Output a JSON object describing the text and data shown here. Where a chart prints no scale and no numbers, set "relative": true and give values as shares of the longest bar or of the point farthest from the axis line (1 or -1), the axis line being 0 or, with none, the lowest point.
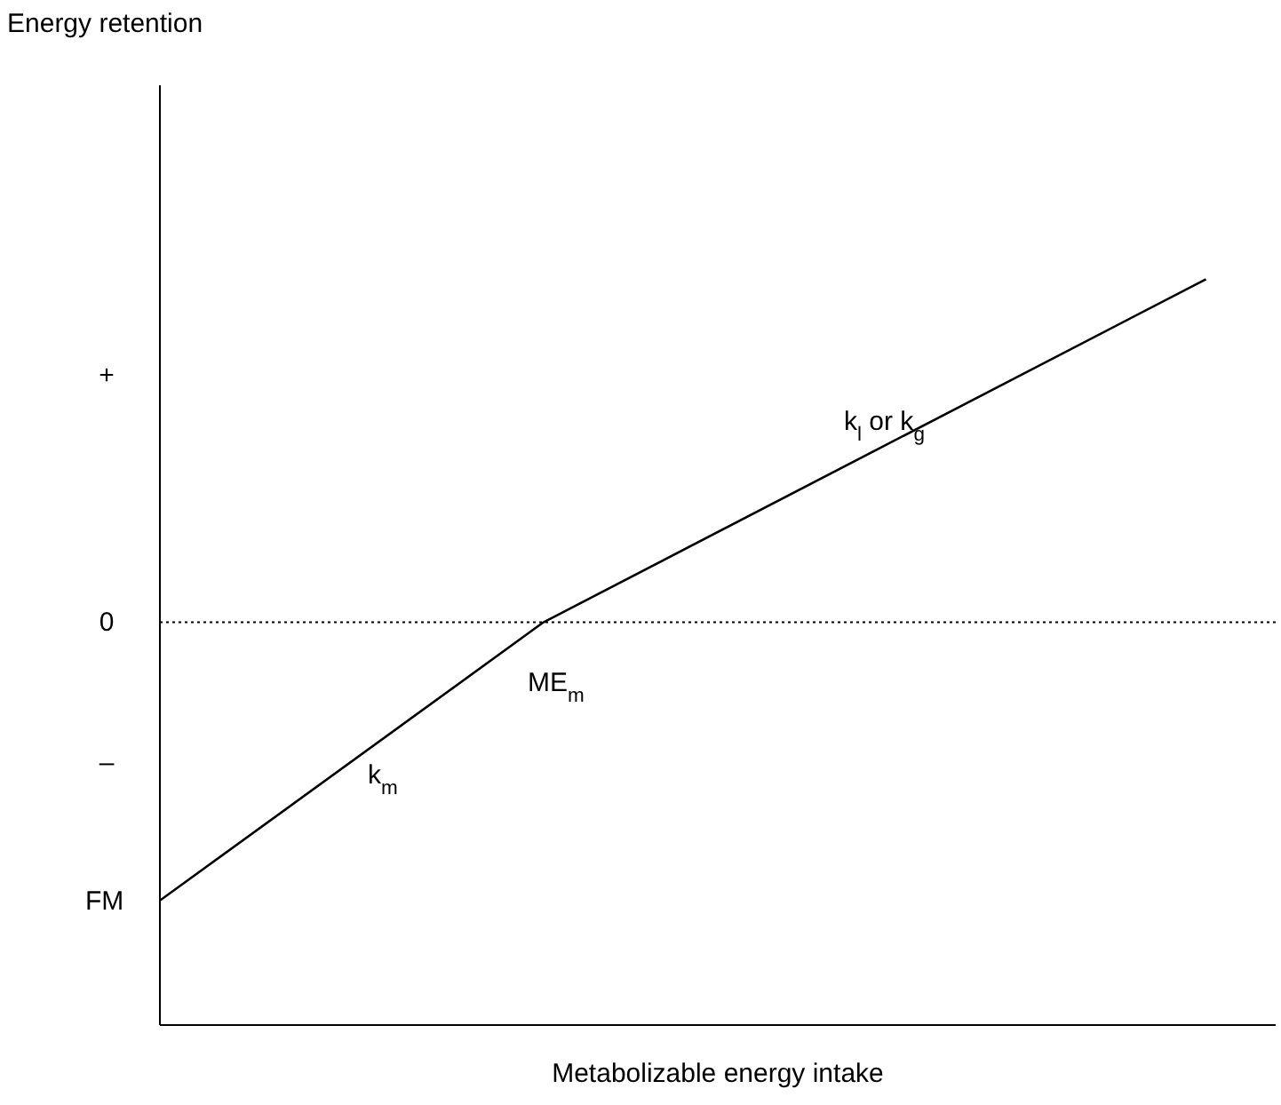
{
  "chart_data": {
    "type": "line",
    "relative": true,
    "xlabel": "Metabolizable energy intake",
    "categories": [
      null,
      null,
      null,
      null,
      null,
      null,
      null,
      null,
      null,
      null,
      null,
      null,
      null,
      null,
      null,
      null,
      null,
      null,
      null,
      null,
      null,
      null,
      null,
      null,
      null,
      null,
      null,
      null,
      null,
      null,
      null,
      null,
      null
    ],
    "series": [
      {
        "color": "#000000",
        "values": [
          0.167,
          null,
          null,
          null,
          null,
          null,
          null,
          null,
          null,
          null,
          null,
          0.54,
          null,
          null,
          null,
          null,
          null,
          null,
          null,
          null,
          null,
          null,
          null,
          null,
          null,
          null,
          null,
          null,
          null,
          null,
          1,
          null,
          null
        ]
      }
    ],
    "ref_lines": [
      {
        "axis": "y",
        "value": 0.54,
        "line_style": "dotted",
        "color": "#000000"
      }
    ],
    "annotations": [
      "Energy retention",
      "0",
      "+",
      "–",
      "FM",
      "k$_{m}$",
      "ME$_{m}$",
      "k$_{l}$ or k$_{g}$"
    ]
  }
}
